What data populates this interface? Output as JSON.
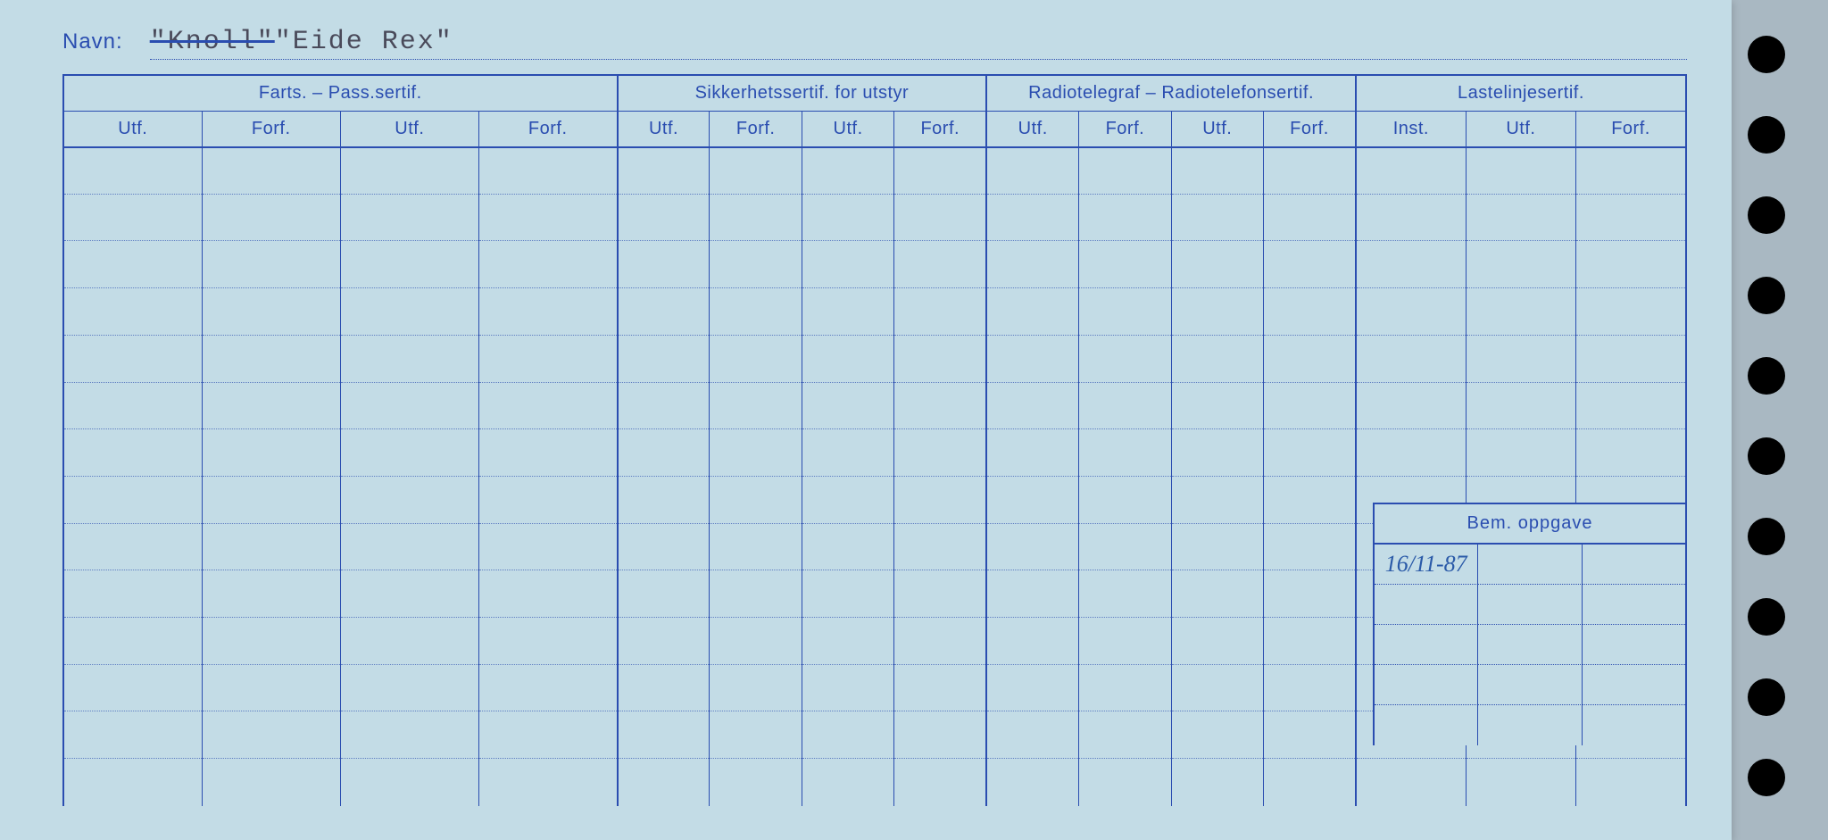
{
  "navn_label": "Navn:",
  "navn_struck": "\"Knoll\"",
  "navn_value": "\"Eide Rex\"",
  "sections": {
    "farts": {
      "title": "Farts. – Pass.sertif.",
      "cols": [
        "Utf.",
        "Forf.",
        "Utf.",
        "Forf."
      ]
    },
    "sikkerhet": {
      "title": "Sikkerhetssertif. for utstyr",
      "cols": [
        "Utf.",
        "Forf.",
        "Utf.",
        "Forf."
      ]
    },
    "radio": {
      "title": "Radiotelegraf – Radiotelefonsertif.",
      "cols": [
        "Utf.",
        "Forf.",
        "Utf.",
        "Forf."
      ]
    },
    "laste": {
      "title": "Lastelinjesertif.",
      "cols": [
        "Inst.",
        "Utf.",
        "Forf."
      ]
    }
  },
  "bem_oppgave": {
    "title": "Bem. oppgave",
    "rows": [
      [
        "16/11-87",
        "",
        ""
      ],
      [
        "",
        "",
        ""
      ],
      [
        "",
        "",
        ""
      ],
      [
        "",
        "",
        ""
      ],
      [
        "",
        "",
        ""
      ]
    ]
  },
  "style": {
    "card_bg": "#c3dce6",
    "ink": "#2a4db0",
    "body_rows": 14,
    "hand_color": "#2a5aa8",
    "label_fontsize": 20,
    "header_fontsize": 20,
    "navn_fontsize": 24,
    "typed_fontsize": 30
  }
}
